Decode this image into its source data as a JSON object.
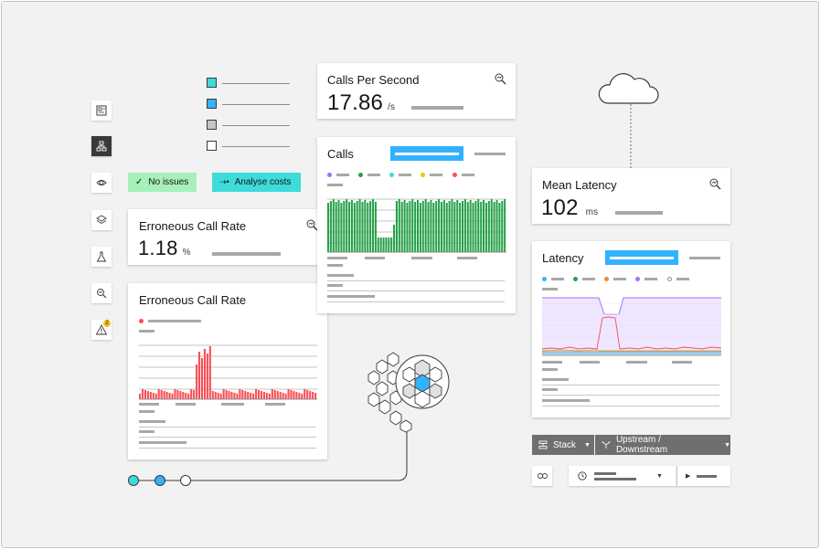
{
  "filter_tags": {
    "no_issues": "No issues",
    "analyse_costs": "Analyse costs"
  },
  "erroneous_rate_card": {
    "title": "Erroneous Call Rate",
    "value": "1.18",
    "unit": "%"
  },
  "erroneous_chart_card": {
    "title": "Erroneous Call Rate"
  },
  "calls_per_second_card": {
    "title": "Calls Per Second",
    "value": "17.86",
    "unit": "/s"
  },
  "calls_card": {
    "title": "Calls"
  },
  "mean_latency_card": {
    "title": "Mean Latency",
    "value": "102",
    "unit": "ms"
  },
  "latency_card": {
    "title": "Latency"
  },
  "toolbar": {
    "stack_label": "Stack",
    "upstream_downstream_label": "Upstream / Downstream"
  },
  "colors": {
    "calls_bar": "#24a148",
    "error_bar": "#fa4d56",
    "accent_blue": "#33b1ff",
    "teal": "#3ddbd9",
    "tag_green": "#a7f0ba",
    "tag_teal": "#3ddbd9",
    "purple_area": "#e8daff"
  },
  "sidebar": {
    "items": [
      {
        "icon": "dashboard-icon"
      },
      {
        "icon": "topology-icon"
      },
      {
        "icon": "cloud-services-icon"
      },
      {
        "icon": "layers-icon"
      },
      {
        "icon": "flask-icon"
      },
      {
        "icon": "analyze-icon"
      },
      {
        "icon": "alert-icon",
        "badge": "2"
      }
    ]
  }
}
